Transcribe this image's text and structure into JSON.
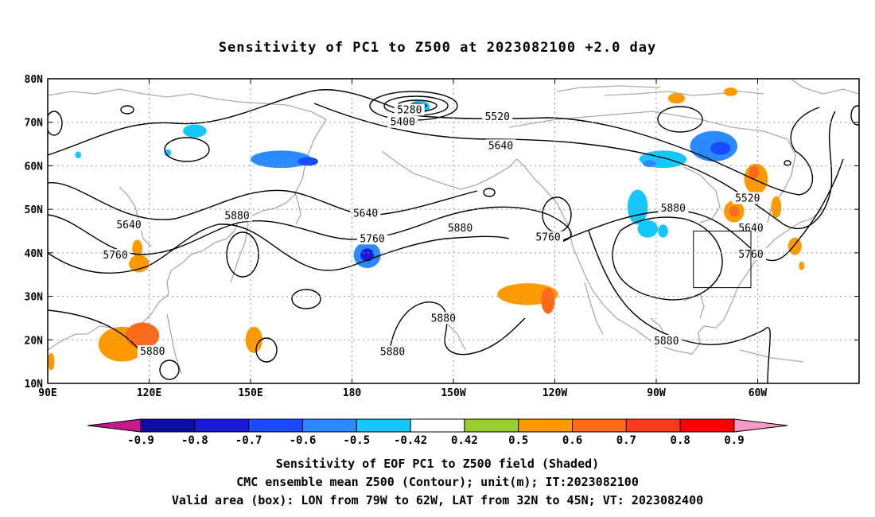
{
  "title": "Sensitivity of PC1 to Z500 at 2023082100 +2.0 day",
  "map": {
    "lat_labels": [
      "80N",
      "70N",
      "60N",
      "50N",
      "40N",
      "30N",
      "20N",
      "10N"
    ],
    "lon_labels": [
      "90E",
      "120E",
      "150E",
      "180",
      "150W",
      "120W",
      "90W",
      "60W"
    ],
    "contour_labels": [
      {
        "text": "5280",
        "lon": 197,
        "lat": 72.8
      },
      {
        "text": "5400",
        "lon": 195,
        "lat": 70.0
      },
      {
        "text": "5520",
        "lon": 223,
        "lat": 71.2
      },
      {
        "text": "5640",
        "lon": 224,
        "lat": 64.6
      },
      {
        "text": "5640",
        "lon": 114,
        "lat": 46.4
      },
      {
        "text": "5880",
        "lon": 146,
        "lat": 48.5
      },
      {
        "text": "5640",
        "lon": 184,
        "lat": 49.0
      },
      {
        "text": "5760",
        "lon": 110,
        "lat": 39.4
      },
      {
        "text": "5760",
        "lon": 186,
        "lat": 43.2
      },
      {
        "text": "5880",
        "lon": 212,
        "lat": 45.6
      },
      {
        "text": "5760",
        "lon": 238,
        "lat": 43.5
      },
      {
        "text": "5880",
        "lon": 275,
        "lat": 50.2
      },
      {
        "text": "5520",
        "lon": 297,
        "lat": 52.5
      },
      {
        "text": "5640",
        "lon": 298,
        "lat": 45.6
      },
      {
        "text": "5760",
        "lon": 298,
        "lat": 39.6
      },
      {
        "text": "5880",
        "lon": 121,
        "lat": 17.3
      },
      {
        "text": "5880",
        "lon": 207,
        "lat": 24.9
      },
      {
        "text": "5880",
        "lon": 192,
        "lat": 17.2
      },
      {
        "text": "5880",
        "lon": 273,
        "lat": 19.7
      }
    ],
    "valid_box": {
      "lon_min": 281,
      "lon_max": 298,
      "lat_min": 32,
      "lat_max": 45
    },
    "shading": [
      {
        "lon": 112,
        "lat": 19,
        "rx": 7,
        "ry": 4,
        "value": 0.5
      },
      {
        "lon": 118,
        "lat": 21,
        "rx": 5,
        "ry": 3,
        "value": 0.6
      },
      {
        "lon": 117,
        "lat": 37.5,
        "rx": 3,
        "ry": 2,
        "value": 0.5
      },
      {
        "lon": 116.5,
        "lat": 41,
        "rx": 1.5,
        "ry": 2,
        "value": 0.5
      },
      {
        "lon": 151,
        "lat": 20,
        "rx": 2.5,
        "ry": 3,
        "value": 0.5
      },
      {
        "lon": 91,
        "lat": 15,
        "rx": 1,
        "ry": 2,
        "value": 0.5
      },
      {
        "lon": 133.5,
        "lat": 68,
        "rx": 3.5,
        "ry": 1.5,
        "value": -0.5
      },
      {
        "lon": 125.5,
        "lat": 63,
        "rx": 1,
        "ry": 0.8,
        "value": -0.5
      },
      {
        "lon": 99,
        "lat": 62.5,
        "rx": 0.9,
        "ry": 0.8,
        "value": -0.5
      },
      {
        "lon": 159,
        "lat": 61.5,
        "rx": 9,
        "ry": 2,
        "value": -0.6
      },
      {
        "lon": 167,
        "lat": 61,
        "rx": 3,
        "ry": 1,
        "value": -0.7
      },
      {
        "lon": 184.5,
        "lat": 39.5,
        "rx": 4,
        "ry": 3,
        "value": -0.6
      },
      {
        "lon": 184.5,
        "lat": 39.5,
        "rx": 2,
        "ry": 1.5,
        "value": -0.8
      },
      {
        "lon": 200,
        "lat": 73.5,
        "rx": 3,
        "ry": 1.5,
        "value": -0.5
      },
      {
        "lon": 209.5,
        "lat": 26,
        "rx": 1,
        "ry": 0.5,
        "value": -0.5
      },
      {
        "lon": 232,
        "lat": 30.5,
        "rx": 9,
        "ry": 2.5,
        "value": 0.5
      },
      {
        "lon": 238,
        "lat": 29,
        "rx": 2,
        "ry": 3,
        "value": 0.6
      },
      {
        "lon": 264.5,
        "lat": 50.5,
        "rx": 3,
        "ry": 4,
        "value": -0.5
      },
      {
        "lon": 267.5,
        "lat": 45.5,
        "rx": 3,
        "ry": 2,
        "value": -0.5
      },
      {
        "lon": 272,
        "lat": 45,
        "rx": 1.5,
        "ry": 1.5,
        "value": -0.5
      },
      {
        "lon": 272,
        "lat": 61.5,
        "rx": 7,
        "ry": 2,
        "value": -0.5
      },
      {
        "lon": 287,
        "lat": 64.5,
        "rx": 7,
        "ry": 3.5,
        "value": -0.6
      },
      {
        "lon": 289,
        "lat": 64,
        "rx": 3,
        "ry": 1.5,
        "value": -0.7
      },
      {
        "lon": 268,
        "lat": 60.5,
        "rx": 2,
        "ry": 0.8,
        "value": -0.6
      },
      {
        "lon": 276,
        "lat": 75.5,
        "rx": 2.5,
        "ry": 1.2,
        "value": 0.5
      },
      {
        "lon": 292,
        "lat": 77,
        "rx": 2,
        "ry": 1,
        "value": 0.5
      },
      {
        "lon": 299.5,
        "lat": 57,
        "rx": 3.5,
        "ry": 3.5,
        "value": 0.5
      },
      {
        "lon": 299,
        "lat": 58.5,
        "rx": 1.5,
        "ry": 1.5,
        "value": 0.6
      },
      {
        "lon": 293,
        "lat": 49.5,
        "rx": 3,
        "ry": 2.5,
        "value": 0.5
      },
      {
        "lon": 293,
        "lat": 49.5,
        "rx": 1.5,
        "ry": 1.2,
        "value": 0.6
      },
      {
        "lon": 301,
        "lat": 46,
        "rx": 1.5,
        "ry": 1,
        "value": 0.5
      },
      {
        "lon": 305.5,
        "lat": 50.5,
        "rx": 1.5,
        "ry": 2.5,
        "value": 0.5
      },
      {
        "lon": 311,
        "lat": 41.5,
        "rx": 2,
        "ry": 2,
        "value": 0.5
      },
      {
        "lon": 313,
        "lat": 37,
        "rx": 0.8,
        "ry": 1,
        "value": 0.5
      }
    ]
  },
  "colorbar": {
    "labels": [
      "-0.9",
      "-0.8",
      "-0.7",
      "-0.6",
      "-0.5",
      "-0.42",
      "0.42",
      "0.5",
      "0.6",
      "0.7",
      "0.8",
      "0.9"
    ],
    "colors": {
      "under": "#c51a8b",
      "c1": "#0d0da2",
      "c2": "#1a1ad6",
      "c3": "#1a4cff",
      "c4": "#2b8aff",
      "c5": "#14c8ff",
      "c6": "#ffffff",
      "c7": "#9acd32",
      "c8": "#ff9900",
      "c9": "#ff6a1a",
      "c10": "#ff3c1a",
      "c11": "#ff0000",
      "over": "#f59ac8"
    }
  },
  "captions": {
    "line1": "Sensitivity of EOF PC1 to Z500 field (Shaded)",
    "line2": "CMC ensemble mean Z500 (Contour); unit(m); IT:2023082100",
    "line3": "Valid area (box): LON from 79W to 62W, LAT from 32N to 45N; VT: 2023082400"
  }
}
